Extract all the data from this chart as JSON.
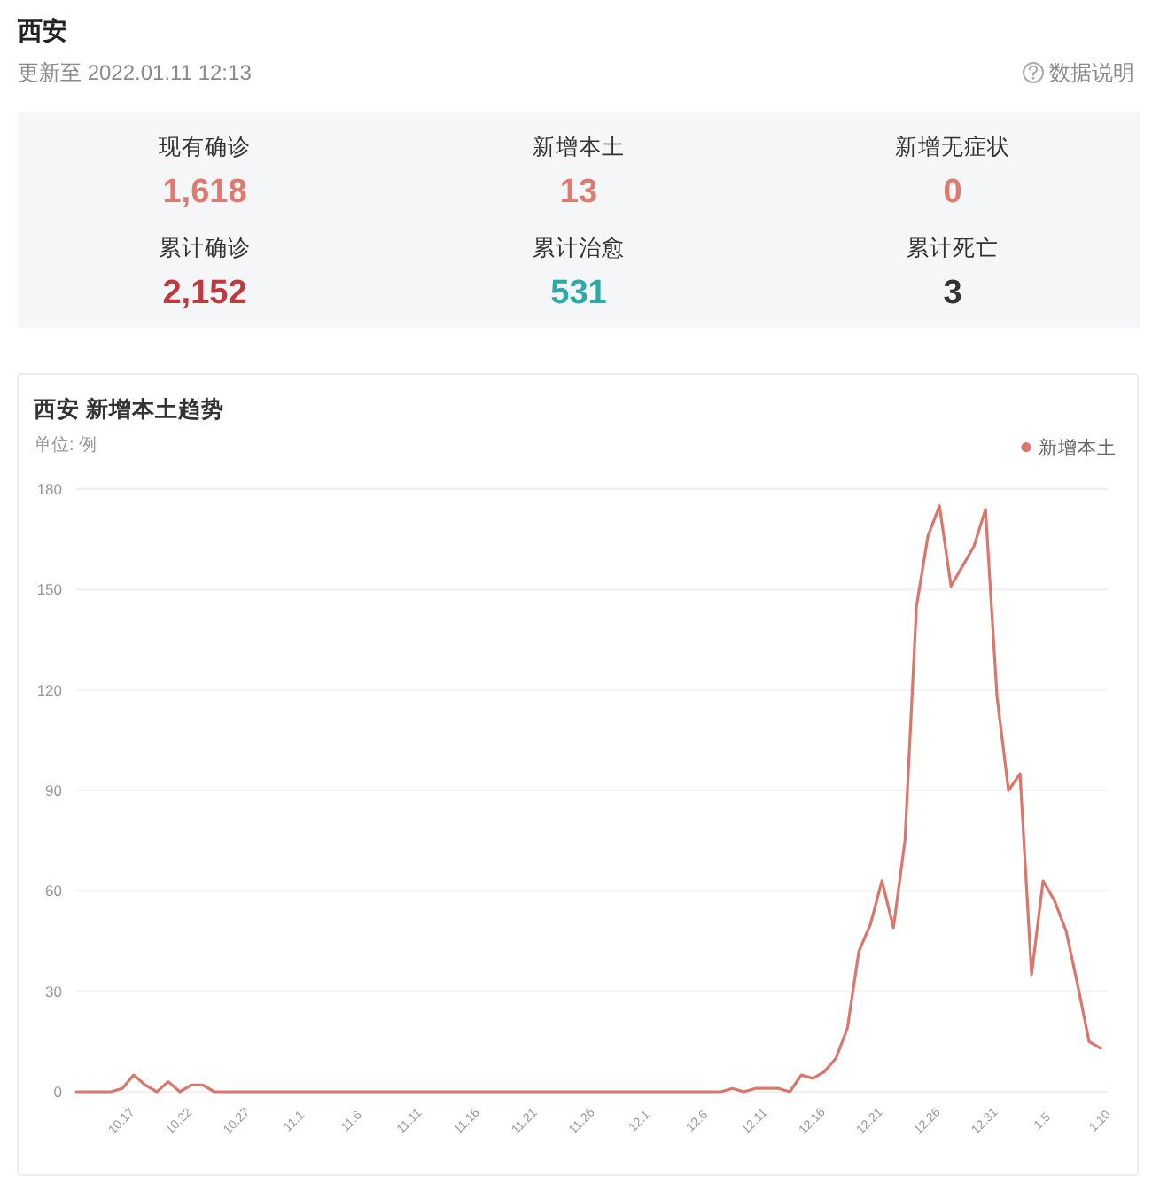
{
  "chart_data": [
    {
      "type": "other",
      "title": "西安",
      "subtitle": "更新至 2022.01.11 12:13",
      "annotations": [
        "数据说明",
        "现有确诊",
        "1,618",
        "新增本土",
        "13",
        "新增无症状",
        "0",
        "累计确诊",
        "2,152",
        "累计治愈",
        "531",
        "累计死亡",
        "3"
      ]
    },
    {
      "type": "line",
      "title": "西安 新增本土趋势",
      "ylabel": "单位: 例",
      "categories": [
        null,
        null,
        null,
        null,
        "10.17",
        null,
        null,
        null,
        null,
        "10.22",
        null,
        null,
        null,
        null,
        "10.27",
        null,
        null,
        null,
        null,
        "11.1",
        null,
        null,
        null,
        null,
        "11.6",
        null,
        null,
        null,
        null,
        "11.11",
        null,
        null,
        null,
        null,
        "11.16",
        null,
        null,
        null,
        null,
        "11.21",
        null,
        null,
        null,
        null,
        "11.26",
        null,
        null,
        null,
        null,
        "12.1",
        null,
        null,
        null,
        null,
        "12.6",
        null,
        null,
        null,
        null,
        "12.11",
        null,
        null,
        null,
        null,
        "12.16",
        null,
        null,
        null,
        null,
        "12.21",
        null,
        null,
        null,
        null,
        "12.26",
        null,
        null,
        null,
        null,
        "12.31",
        null,
        null,
        null,
        null,
        "1.5",
        null,
        null,
        null,
        null,
        "1.10"
      ],
      "series": [
        {
          "name": "新增本土",
          "color": "#d9776c",
          "values": [
            0,
            0,
            0,
            0,
            1,
            5,
            2,
            0,
            3,
            0,
            2,
            2,
            0,
            0,
            0,
            0,
            0,
            0,
            0,
            0,
            0,
            0,
            0,
            0,
            0,
            0,
            0,
            0,
            0,
            0,
            0,
            0,
            0,
            0,
            0,
            0,
            0,
            0,
            0,
            0,
            0,
            0,
            0,
            0,
            0,
            0,
            0,
            0,
            0,
            0,
            0,
            0,
            0,
            0,
            0,
            0,
            0,
            1,
            0,
            1,
            1,
            1,
            0,
            5,
            4,
            6,
            10,
            19,
            42,
            50,
            63,
            49,
            75,
            145,
            166,
            175,
            151,
            157,
            163,
            174,
            118,
            90,
            95,
            35,
            63,
            57,
            48,
            32,
            15,
            13
          ]
        }
      ],
      "ylim": [
        0,
        180
      ],
      "yticks": [
        0,
        30,
        60,
        90,
        120,
        150,
        180
      ],
      "grid": "y",
      "legend": "top right"
    }
  ]
}
